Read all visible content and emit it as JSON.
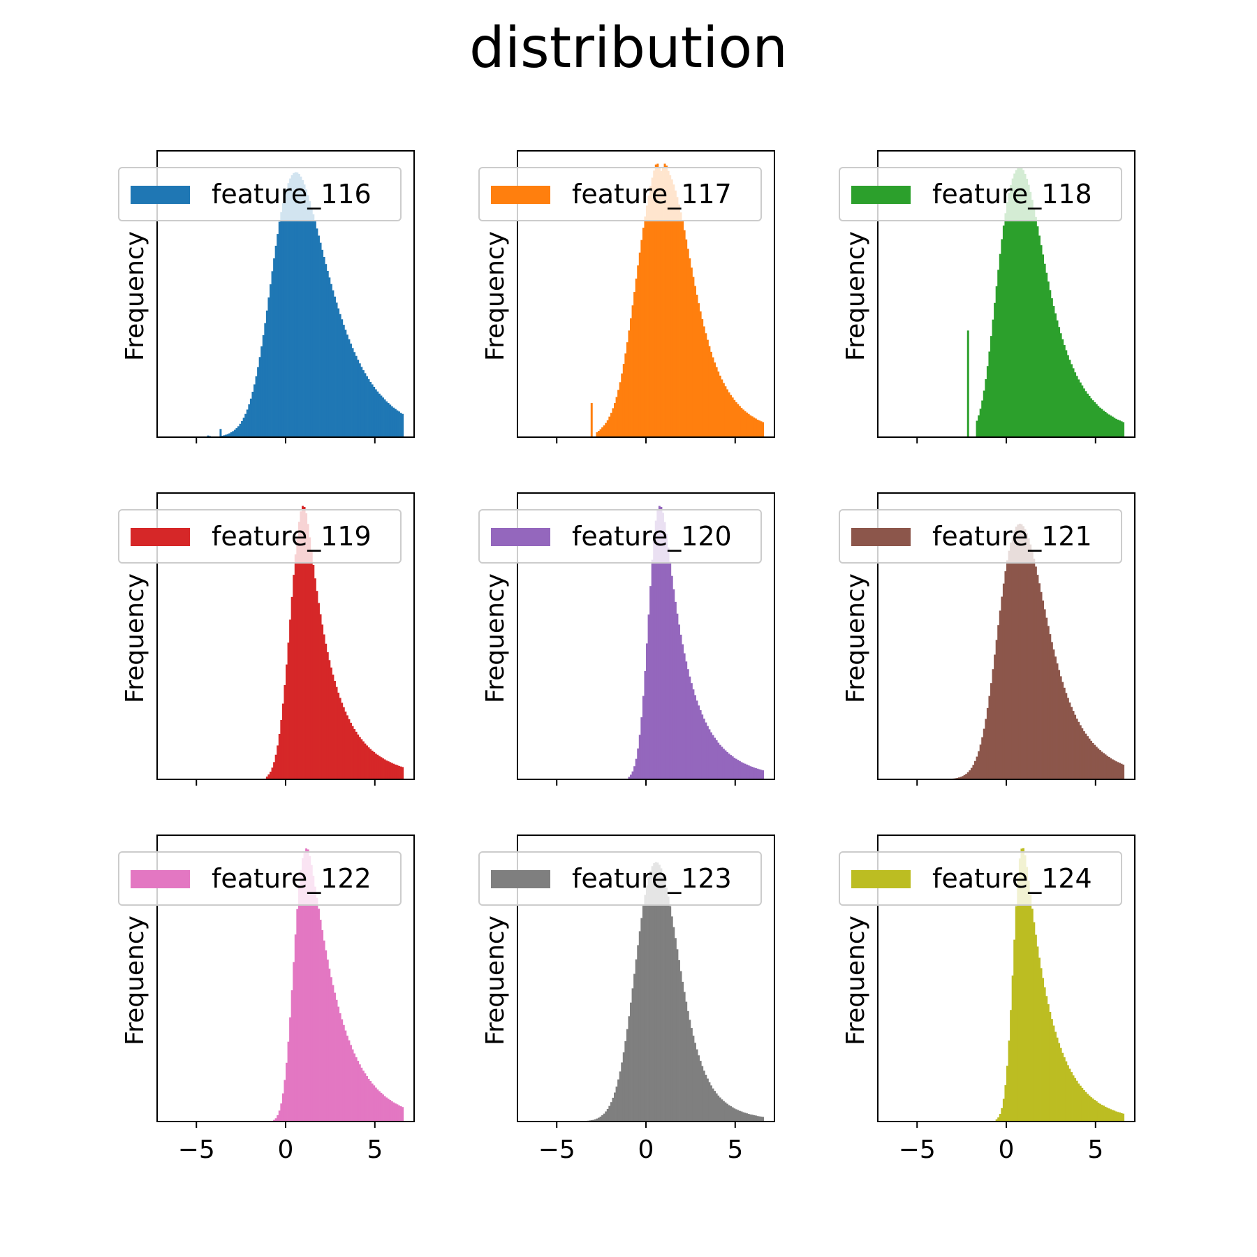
{
  "title": "distribution",
  "chart_data": {
    "type": "histogram",
    "title": "distribution",
    "layout": "3x3 subplots, shared x axis",
    "xlabel": "",
    "ylabel": "Frequency",
    "xlim": [
      -7.2,
      7.2
    ],
    "xticks": [
      -5,
      0,
      5
    ],
    "xtick_labels": [
      "−5",
      "0",
      "5"
    ],
    "y_ticks_shown": false,
    "legend_position": "top",
    "panels": [
      {
        "name": "feature_116",
        "color": "#1f77b4",
        "bins_start": -4.4,
        "bin_width": 0.1,
        "counts": [
          0.006,
          0.004,
          0.002,
          0.002,
          0.002,
          0.002,
          0.002,
          0.03,
          0.005,
          0.007,
          0.009,
          0.011,
          0.014,
          0.018,
          0.022,
          0.027,
          0.033,
          0.04,
          0.049,
          0.059,
          0.071,
          0.085,
          0.101,
          0.12,
          0.141,
          0.166,
          0.193,
          0.223,
          0.256,
          0.293,
          0.332,
          0.373,
          0.417,
          0.463,
          0.511,
          0.559,
          0.607,
          0.654,
          0.7,
          0.743,
          0.788,
          0.823,
          0.855,
          0.884,
          0.909,
          0.929,
          0.946,
          0.958,
          0.966,
          0.969,
          0.968,
          0.963,
          0.953,
          0.94,
          0.924,
          0.906,
          0.885,
          0.863,
          0.839,
          0.815,
          0.789,
          0.763,
          0.737,
          0.711,
          0.685,
          0.659,
          0.633,
          0.608,
          0.584,
          0.56,
          0.537,
          0.514,
          0.492,
          0.471,
          0.45,
          0.431,
          0.411,
          0.393,
          0.375,
          0.358,
          0.342,
          0.326,
          0.311,
          0.297,
          0.283,
          0.27,
          0.257,
          0.245,
          0.234,
          0.223,
          0.212,
          0.202,
          0.193,
          0.184,
          0.175,
          0.167,
          0.159,
          0.152,
          0.145,
          0.138,
          0.131,
          0.125,
          0.119,
          0.113,
          0.108,
          0.103,
          0.098,
          0.094,
          0.089,
          0.085
        ]
      },
      {
        "name": "feature_117",
        "color": "#ff7f0e",
        "bins_start": -4.4,
        "bin_width": 0.1,
        "counts": [
          0.002,
          0.002,
          0.002,
          0.002,
          0.002,
          0.002,
          0.002,
          0.002,
          0.002,
          0.002,
          0.002,
          0.002,
          0.002,
          0.125,
          0.002,
          0.002,
          0.018,
          0.023,
          0.029,
          0.036,
          0.043,
          0.052,
          0.062,
          0.075,
          0.089,
          0.106,
          0.125,
          0.147,
          0.173,
          0.201,
          0.233,
          0.268,
          0.306,
          0.347,
          0.39,
          0.435,
          0.482,
          0.531,
          0.58,
          0.628,
          0.675,
          0.721,
          0.766,
          0.807,
          0.847,
          0.884,
          0.918,
          0.949,
          0.975,
          0.997,
          1.0,
          0.985,
          0.974,
          0.985,
          1.0,
          0.993,
          0.974,
          0.958,
          0.943,
          0.924,
          0.902,
          0.878,
          0.851,
          0.822,
          0.79,
          0.757,
          0.723,
          0.689,
          0.654,
          0.62,
          0.586,
          0.553,
          0.521,
          0.49,
          0.46,
          0.432,
          0.405,
          0.38,
          0.356,
          0.333,
          0.312,
          0.292,
          0.273,
          0.256,
          0.24,
          0.225,
          0.211,
          0.198,
          0.186,
          0.175,
          0.164,
          0.154,
          0.145,
          0.136,
          0.128,
          0.121,
          0.114,
          0.107,
          0.101,
          0.095,
          0.09,
          0.085,
          0.08,
          0.076,
          0.072,
          0.068,
          0.064,
          0.061,
          0.058,
          0.055
        ]
      },
      {
        "name": "feature_118",
        "color": "#2ca02c",
        "bins_start": -4.4,
        "bin_width": 0.1,
        "counts": [
          0.002,
          0.002,
          0.002,
          0.002,
          0.002,
          0.002,
          0.002,
          0.002,
          0.002,
          0.002,
          0.002,
          0.002,
          0.002,
          0.002,
          0.002,
          0.002,
          0.002,
          0.002,
          0.002,
          0.002,
          0.002,
          0.002,
          0.39,
          0.002,
          0.002,
          0.002,
          0.002,
          0.06,
          0.08,
          0.104,
          0.134,
          0.17,
          0.212,
          0.26,
          0.313,
          0.37,
          0.43,
          0.491,
          0.552,
          0.612,
          0.67,
          0.724,
          0.774,
          0.819,
          0.859,
          0.893,
          0.922,
          0.946,
          0.964,
          0.977,
          0.985,
          0.988,
          0.986,
          0.977,
          0.963,
          0.945,
          0.923,
          0.897,
          0.868,
          0.837,
          0.805,
          0.771,
          0.737,
          0.702,
          0.668,
          0.634,
          0.601,
          0.569,
          0.538,
          0.508,
          0.48,
          0.453,
          0.427,
          0.403,
          0.38,
          0.358,
          0.337,
          0.318,
          0.3,
          0.283,
          0.267,
          0.252,
          0.237,
          0.224,
          0.211,
          0.2,
          0.189,
          0.178,
          0.168,
          0.159,
          0.151,
          0.142,
          0.135,
          0.128,
          0.121,
          0.114,
          0.108,
          0.103,
          0.097,
          0.092,
          0.087,
          0.083,
          0.079,
          0.075,
          0.071,
          0.067,
          0.064,
          0.061,
          0.058,
          0.055
        ]
      },
      {
        "name": "feature_119",
        "color": "#d62728",
        "bins_start": -4.4,
        "bin_width": 0.1,
        "counts": [
          0.002,
          0.002,
          0.002,
          0.002,
          0.002,
          0.002,
          0.002,
          0.002,
          0.002,
          0.002,
          0.002,
          0.002,
          0.002,
          0.002,
          0.002,
          0.002,
          0.002,
          0.002,
          0.002,
          0.002,
          0.002,
          0.002,
          0.002,
          0.002,
          0.002,
          0.002,
          0.002,
          0.002,
          0.002,
          0.002,
          0.002,
          0.002,
          0.002,
          0.01,
          0.018,
          0.028,
          0.043,
          0.063,
          0.09,
          0.124,
          0.166,
          0.217,
          0.277,
          0.345,
          0.42,
          0.5,
          0.584,
          0.667,
          0.748,
          0.823,
          0.888,
          0.942,
          0.98,
          1.0,
          0.996,
          0.973,
          0.934,
          0.885,
          0.834,
          0.784,
          0.735,
          0.689,
          0.645,
          0.604,
          0.566,
          0.53,
          0.496,
          0.465,
          0.436,
          0.409,
          0.383,
          0.36,
          0.338,
          0.317,
          0.298,
          0.28,
          0.264,
          0.248,
          0.234,
          0.22,
          0.207,
          0.195,
          0.184,
          0.174,
          0.164,
          0.155,
          0.147,
          0.139,
          0.131,
          0.124,
          0.117,
          0.111,
          0.105,
          0.1,
          0.094,
          0.09,
          0.085,
          0.081,
          0.077,
          0.073,
          0.069,
          0.066,
          0.063,
          0.06,
          0.057,
          0.054,
          0.052,
          0.049,
          0.047,
          0.045
        ]
      },
      {
        "name": "feature_120",
        "color": "#9467bd",
        "bins_start": -4.4,
        "bin_width": 0.1,
        "counts": [
          0.002,
          0.002,
          0.002,
          0.002,
          0.002,
          0.002,
          0.002,
          0.002,
          0.002,
          0.002,
          0.002,
          0.002,
          0.002,
          0.002,
          0.002,
          0.002,
          0.002,
          0.002,
          0.002,
          0.002,
          0.002,
          0.002,
          0.002,
          0.002,
          0.002,
          0.002,
          0.002,
          0.002,
          0.002,
          0.002,
          0.002,
          0.002,
          0.002,
          0.002,
          0.009,
          0.017,
          0.029,
          0.048,
          0.075,
          0.113,
          0.163,
          0.227,
          0.305,
          0.396,
          0.497,
          0.603,
          0.707,
          0.803,
          0.885,
          0.946,
          0.984,
          1.0,
          0.996,
          0.975,
          0.941,
          0.897,
          0.848,
          0.796,
          0.744,
          0.695,
          0.649,
          0.606,
          0.566,
          0.529,
          0.494,
          0.461,
          0.431,
          0.403,
          0.376,
          0.352,
          0.329,
          0.308,
          0.288,
          0.27,
          0.253,
          0.237,
          0.222,
          0.208,
          0.195,
          0.183,
          0.172,
          0.162,
          0.152,
          0.143,
          0.134,
          0.126,
          0.119,
          0.112,
          0.106,
          0.1,
          0.094,
          0.089,
          0.084,
          0.079,
          0.075,
          0.071,
          0.067,
          0.063,
          0.06,
          0.057,
          0.054,
          0.051,
          0.048,
          0.046,
          0.043,
          0.041,
          0.039,
          0.037,
          0.035,
          0.033
        ]
      },
      {
        "name": "feature_121",
        "color": "#8c564b",
        "bins_start": -4.4,
        "bin_width": 0.1,
        "counts": [
          0.002,
          0.002,
          0.002,
          0.002,
          0.002,
          0.002,
          0.002,
          0.002,
          0.002,
          0.002,
          0.002,
          0.002,
          0.002,
          0.002,
          0.003,
          0.004,
          0.005,
          0.007,
          0.009,
          0.012,
          0.016,
          0.02,
          0.026,
          0.033,
          0.042,
          0.053,
          0.067,
          0.083,
          0.103,
          0.127,
          0.154,
          0.185,
          0.221,
          0.261,
          0.305,
          0.352,
          0.403,
          0.456,
          0.51,
          0.564,
          0.617,
          0.668,
          0.716,
          0.761,
          0.801,
          0.836,
          0.866,
          0.891,
          0.91,
          0.924,
          0.932,
          0.935,
          0.933,
          0.926,
          0.915,
          0.9,
          0.881,
          0.859,
          0.834,
          0.807,
          0.778,
          0.748,
          0.717,
          0.685,
          0.654,
          0.622,
          0.591,
          0.561,
          0.531,
          0.502,
          0.475,
          0.449,
          0.424,
          0.4,
          0.377,
          0.356,
          0.335,
          0.316,
          0.298,
          0.281,
          0.265,
          0.25,
          0.236,
          0.222,
          0.21,
          0.198,
          0.187,
          0.176,
          0.167,
          0.158,
          0.149,
          0.141,
          0.133,
          0.126,
          0.119,
          0.113,
          0.107,
          0.101,
          0.096,
          0.091,
          0.086,
          0.082,
          0.077,
          0.073,
          0.07,
          0.066,
          0.063,
          0.06,
          0.057,
          0.054
        ]
      },
      {
        "name": "feature_122",
        "color": "#e377c2",
        "bins_start": -4.4,
        "bin_width": 0.1,
        "counts": [
          0.002,
          0.002,
          0.002,
          0.002,
          0.002,
          0.002,
          0.002,
          0.002,
          0.002,
          0.002,
          0.002,
          0.002,
          0.002,
          0.002,
          0.002,
          0.002,
          0.002,
          0.002,
          0.002,
          0.002,
          0.002,
          0.002,
          0.002,
          0.002,
          0.002,
          0.002,
          0.002,
          0.002,
          0.002,
          0.002,
          0.002,
          0.002,
          0.002,
          0.002,
          0.002,
          0.002,
          0.002,
          0.006,
          0.012,
          0.023,
          0.04,
          0.066,
          0.103,
          0.152,
          0.215,
          0.292,
          0.381,
          0.48,
          0.583,
          0.684,
          0.777,
          0.857,
          0.92,
          0.963,
          0.988,
          0.999,
          0.995,
          0.971,
          0.938,
          0.899,
          0.859,
          0.818,
          0.778,
          0.738,
          0.7,
          0.662,
          0.626,
          0.592,
          0.559,
          0.528,
          0.499,
          0.471,
          0.445,
          0.42,
          0.396,
          0.374,
          0.353,
          0.333,
          0.314,
          0.297,
          0.28,
          0.264,
          0.249,
          0.235,
          0.222,
          0.209,
          0.197,
          0.186,
          0.176,
          0.166,
          0.156,
          0.148,
          0.139,
          0.132,
          0.124,
          0.117,
          0.111,
          0.105,
          0.099,
          0.093,
          0.088,
          0.083,
          0.079,
          0.074,
          0.07,
          0.066,
          0.063,
          0.059,
          0.056,
          0.053
        ]
      },
      {
        "name": "feature_123",
        "color": "#7f7f7f",
        "bins_start": -4.4,
        "bin_width": 0.1,
        "counts": [
          0.002,
          0.002,
          0.002,
          0.002,
          0.002,
          0.002,
          0.002,
          0.002,
          0.002,
          0.002,
          0.002,
          0.003,
          0.004,
          0.005,
          0.006,
          0.008,
          0.011,
          0.014,
          0.018,
          0.023,
          0.029,
          0.037,
          0.046,
          0.057,
          0.071,
          0.087,
          0.106,
          0.128,
          0.154,
          0.183,
          0.216,
          0.253,
          0.294,
          0.338,
          0.385,
          0.435,
          0.487,
          0.54,
          0.593,
          0.645,
          0.696,
          0.744,
          0.789,
          0.829,
          0.864,
          0.894,
          0.917,
          0.934,
          0.945,
          0.949,
          0.947,
          0.939,
          0.926,
          0.907,
          0.883,
          0.855,
          0.823,
          0.788,
          0.75,
          0.711,
          0.671,
          0.63,
          0.59,
          0.55,
          0.511,
          0.474,
          0.438,
          0.404,
          0.372,
          0.342,
          0.314,
          0.288,
          0.264,
          0.242,
          0.222,
          0.203,
          0.186,
          0.171,
          0.157,
          0.144,
          0.132,
          0.121,
          0.112,
          0.103,
          0.095,
          0.088,
          0.081,
          0.075,
          0.07,
          0.065,
          0.06,
          0.056,
          0.052,
          0.048,
          0.045,
          0.042,
          0.039,
          0.037,
          0.034,
          0.032,
          0.03,
          0.028,
          0.026,
          0.025,
          0.023,
          0.022,
          0.02,
          0.019,
          0.018,
          0.017
        ]
      },
      {
        "name": "feature_124",
        "color": "#bcbd22",
        "bins_start": -4.4,
        "bin_width": 0.1,
        "counts": [
          0.002,
          0.002,
          0.002,
          0.002,
          0.002,
          0.002,
          0.002,
          0.002,
          0.002,
          0.002,
          0.002,
          0.002,
          0.002,
          0.002,
          0.002,
          0.002,
          0.002,
          0.002,
          0.002,
          0.002,
          0.002,
          0.002,
          0.002,
          0.002,
          0.002,
          0.002,
          0.002,
          0.002,
          0.002,
          0.002,
          0.002,
          0.002,
          0.002,
          0.002,
          0.002,
          0.002,
          0.002,
          0.002,
          0.008,
          0.015,
          0.028,
          0.049,
          0.083,
          0.133,
          0.204,
          0.296,
          0.408,
          0.534,
          0.665,
          0.788,
          0.89,
          0.962,
          0.998,
          1.0,
          0.974,
          0.931,
          0.881,
          0.829,
          0.778,
          0.729,
          0.683,
          0.64,
          0.599,
          0.561,
          0.525,
          0.491,
          0.459,
          0.429,
          0.401,
          0.375,
          0.351,
          0.328,
          0.307,
          0.287,
          0.269,
          0.251,
          0.235,
          0.22,
          0.206,
          0.193,
          0.181,
          0.169,
          0.159,
          0.149,
          0.139,
          0.131,
          0.123,
          0.115,
          0.108,
          0.101,
          0.095,
          0.089,
          0.084,
          0.079,
          0.074,
          0.069,
          0.065,
          0.061,
          0.058,
          0.054,
          0.051,
          0.048,
          0.045,
          0.042,
          0.04,
          0.037,
          0.035,
          0.033,
          0.031,
          0.029
        ]
      }
    ]
  }
}
